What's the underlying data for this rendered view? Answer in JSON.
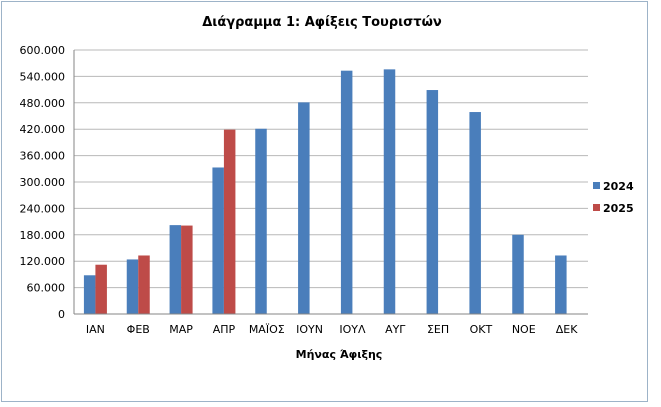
{
  "chart_data": {
    "type": "bar",
    "title": "Διάγραμμα 1: Αφίξεις Τουριστών",
    "xlabel": "Μήνας Άφιξης",
    "ylabel": "",
    "ylim": [
      0,
      600000
    ],
    "yticks": [
      0,
      60000,
      120000,
      180000,
      240000,
      300000,
      360000,
      420000,
      480000,
      540000,
      600000
    ],
    "ytick_labels": [
      "0",
      "60.000",
      "120.000",
      "180.000",
      "240.000",
      "300.000",
      "360.000",
      "420.000",
      "480.000",
      "540.000",
      "600.000"
    ],
    "categories": [
      "ΙΑΝ",
      "ΦΕΒ",
      "ΜΑΡ",
      "ΑΠΡ",
      "ΜΑΪΟΣ",
      "ΙΟΥΝ",
      "ΙΟΥΛ",
      "ΑΥΓ",
      "ΣΕΠ",
      "ΟΚΤ",
      "ΝΟΕ",
      "ΔΕΚ"
    ],
    "series": [
      {
        "name": "2024",
        "color": "#4a7ebb",
        "values": [
          88000,
          124000,
          202000,
          333000,
          421000,
          481000,
          553000,
          556000,
          509000,
          459000,
          180000,
          133000
        ]
      },
      {
        "name": "2025",
        "color": "#be4b48",
        "values": [
          112000,
          133000,
          201000,
          419000,
          null,
          null,
          null,
          null,
          null,
          null,
          null,
          null
        ]
      }
    ],
    "grid": true,
    "legend": "right"
  }
}
